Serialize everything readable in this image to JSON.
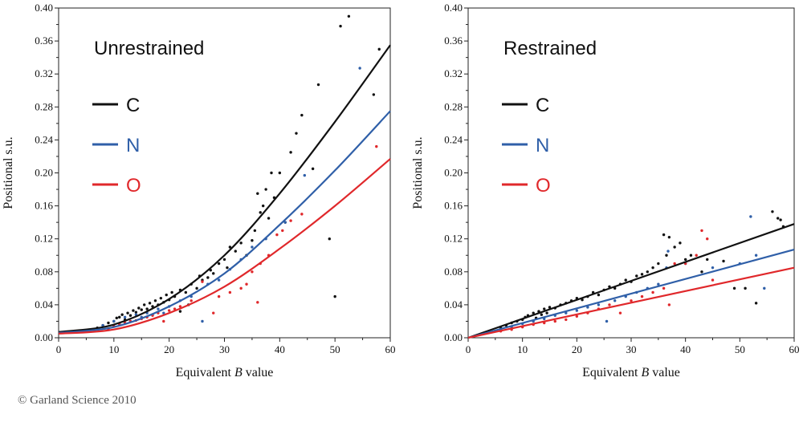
{
  "copyright": "© Garland Science 2010",
  "colors": {
    "C": "#111111",
    "N": "#2f5fa8",
    "O": "#e0282b"
  },
  "chart_data": [
    {
      "type": "scatter",
      "title": "Unrestrained",
      "xlabel_prefix": "Equivalent ",
      "xlabel_var": "B",
      "xlabel_suffix": " value",
      "ylabel": "Positional s.u.",
      "xlim": [
        0,
        60
      ],
      "ylim": [
        0,
        0.4
      ],
      "x_ticks": [
        0,
        10,
        20,
        30,
        40,
        50,
        60
      ],
      "y_ticks": [
        "0.00",
        "0.04",
        "0.08",
        "0.12",
        "0.16",
        "0.20",
        "0.24",
        "0.28",
        "0.32",
        "0.36",
        "0.40"
      ],
      "legend_placement": "top-left",
      "legend": [
        {
          "label": "C",
          "color": "#111111"
        },
        {
          "label": "N",
          "color": "#2f5fa8"
        },
        {
          "label": "O",
          "color": "#e0282b"
        }
      ],
      "fits": [
        {
          "name": "C",
          "color": "#111111",
          "points": [
            [
              0,
              0.007
            ],
            [
              10,
              0.016
            ],
            [
              20,
              0.047
            ],
            [
              30,
              0.1
            ],
            [
              40,
              0.175
            ],
            [
              50,
              0.262
            ],
            [
              60,
              0.355
            ]
          ]
        },
        {
          "name": "N",
          "color": "#2f5fa8",
          "points": [
            [
              0,
              0.006
            ],
            [
              10,
              0.013
            ],
            [
              20,
              0.038
            ],
            [
              30,
              0.078
            ],
            [
              40,
              0.137
            ],
            [
              50,
              0.203
            ],
            [
              60,
              0.275
            ]
          ]
        },
        {
          "name": "O",
          "color": "#e0282b",
          "points": [
            [
              0,
              0.005
            ],
            [
              10,
              0.01
            ],
            [
              20,
              0.03
            ],
            [
              30,
              0.062
            ],
            [
              40,
              0.108
            ],
            [
              50,
              0.16
            ],
            [
              60,
              0.217
            ]
          ]
        }
      ],
      "series": [
        {
          "name": "C",
          "color": "#111111",
          "points": [
            [
              7,
              0.012
            ],
            [
              8,
              0.015
            ],
            [
              9,
              0.018
            ],
            [
              10,
              0.02
            ],
            [
              10.5,
              0.024
            ],
            [
              11,
              0.025
            ],
            [
              11.5,
              0.028
            ],
            [
              12,
              0.022
            ],
            [
              12.5,
              0.03
            ],
            [
              13,
              0.027
            ],
            [
              13.5,
              0.033
            ],
            [
              14,
              0.031
            ],
            [
              14.5,
              0.036
            ],
            [
              15,
              0.034
            ],
            [
              15.5,
              0.04
            ],
            [
              16,
              0.035
            ],
            [
              16.5,
              0.042
            ],
            [
              17,
              0.038
            ],
            [
              17.5,
              0.045
            ],
            [
              18,
              0.04
            ],
            [
              18.5,
              0.048
            ],
            [
              19,
              0.043
            ],
            [
              19.5,
              0.052
            ],
            [
              20,
              0.046
            ],
            [
              20.5,
              0.055
            ],
            [
              21,
              0.05
            ],
            [
              22,
              0.058
            ],
            [
              22,
              0.032
            ],
            [
              23,
              0.055
            ],
            [
              23.5,
              0.04
            ],
            [
              24,
              0.065
            ],
            [
              25,
              0.06
            ],
            [
              25.5,
              0.075
            ],
            [
              26,
              0.07
            ],
            [
              27,
              0.073
            ],
            [
              27.5,
              0.082
            ],
            [
              28,
              0.078
            ],
            [
              29,
              0.09
            ],
            [
              30,
              0.095
            ],
            [
              30.5,
              0.085
            ],
            [
              31,
              0.11
            ],
            [
              32,
              0.105
            ],
            [
              33,
              0.115
            ],
            [
              34,
              0.1
            ],
            [
              35,
              0.118
            ],
            [
              35.5,
              0.13
            ],
            [
              36,
              0.175
            ],
            [
              36.5,
              0.152
            ],
            [
              37,
              0.16
            ],
            [
              37.5,
              0.18
            ],
            [
              38,
              0.145
            ],
            [
              38.5,
              0.2
            ],
            [
              39,
              0.17
            ],
            [
              40,
              0.2
            ],
            [
              41,
              0.14
            ],
            [
              42,
              0.225
            ],
            [
              43,
              0.248
            ],
            [
              44,
              0.27
            ],
            [
              46,
              0.205
            ],
            [
              47,
              0.307
            ],
            [
              49,
              0.12
            ],
            [
              50,
              0.05
            ],
            [
              51,
              0.378
            ],
            [
              52.5,
              0.39
            ],
            [
              57,
              0.295
            ],
            [
              58,
              0.35
            ]
          ]
        },
        {
          "name": "N",
          "color": "#2f5fa8",
          "points": [
            [
              8,
              0.015
            ],
            [
              10,
              0.02
            ],
            [
              11,
              0.017
            ],
            [
              12,
              0.025
            ],
            [
              13,
              0.02
            ],
            [
              14,
              0.028
            ],
            [
              15,
              0.025
            ],
            [
              16,
              0.03
            ],
            [
              17,
              0.028
            ],
            [
              18,
              0.035
            ],
            [
              19,
              0.03
            ],
            [
              20,
              0.038
            ],
            [
              22,
              0.045
            ],
            [
              24,
              0.05
            ],
            [
              26,
              0.02
            ],
            [
              27,
              0.065
            ],
            [
              29,
              0.07
            ],
            [
              31,
              0.083
            ],
            [
              33,
              0.095
            ],
            [
              35,
              0.11
            ],
            [
              37.5,
              0.12
            ],
            [
              41,
              0.14
            ],
            [
              44.5,
              0.197
            ],
            [
              54.5,
              0.327
            ]
          ]
        },
        {
          "name": "O",
          "color": "#e0282b",
          "points": [
            [
              9,
              0.01
            ],
            [
              10,
              0.014
            ],
            [
              11,
              0.016
            ],
            [
              12,
              0.018
            ],
            [
              13,
              0.02
            ],
            [
              14,
              0.021
            ],
            [
              15,
              0.023
            ],
            [
              16,
              0.025
            ],
            [
              17,
              0.027
            ],
            [
              18,
              0.03
            ],
            [
              19,
              0.02
            ],
            [
              20,
              0.033
            ],
            [
              21,
              0.035
            ],
            [
              22,
              0.038
            ],
            [
              24,
              0.045
            ],
            [
              26,
              0.068
            ],
            [
              28,
              0.03
            ],
            [
              29,
              0.05
            ],
            [
              31,
              0.055
            ],
            [
              33,
              0.06
            ],
            [
              34,
              0.065
            ],
            [
              35,
              0.08
            ],
            [
              36,
              0.043
            ],
            [
              36.5,
              0.09
            ],
            [
              38,
              0.1
            ],
            [
              39.5,
              0.125
            ],
            [
              40.5,
              0.13
            ],
            [
              42,
              0.142
            ],
            [
              44,
              0.15
            ],
            [
              57.5,
              0.232
            ]
          ]
        }
      ]
    },
    {
      "type": "scatter",
      "title": "Restrained",
      "xlabel_prefix": "Equivalent ",
      "xlabel_var": "B",
      "xlabel_suffix": " value",
      "ylabel": "Positional s.u.",
      "xlim": [
        0,
        60
      ],
      "ylim": [
        0,
        0.4
      ],
      "x_ticks": [
        0,
        10,
        20,
        30,
        40,
        50,
        60
      ],
      "y_ticks": [
        "0.00",
        "0.04",
        "0.08",
        "0.12",
        "0.16",
        "0.20",
        "0.24",
        "0.28",
        "0.32",
        "0.36",
        "0.40"
      ],
      "legend_placement": "top-left",
      "legend": [
        {
          "label": "C",
          "color": "#111111"
        },
        {
          "label": "N",
          "color": "#2f5fa8"
        },
        {
          "label": "O",
          "color": "#e0282b"
        }
      ],
      "fits": [
        {
          "name": "C",
          "color": "#111111",
          "points": [
            [
              0,
              0.0
            ],
            [
              60,
              0.138
            ]
          ]
        },
        {
          "name": "N",
          "color": "#2f5fa8",
          "points": [
            [
              0,
              0.0
            ],
            [
              60,
              0.107
            ]
          ]
        },
        {
          "name": "O",
          "color": "#e0282b",
          "points": [
            [
              0,
              0.0
            ],
            [
              60,
              0.085
            ]
          ]
        }
      ],
      "series": [
        {
          "name": "C",
          "color": "#111111",
          "points": [
            [
              6,
              0.012
            ],
            [
              7,
              0.015
            ],
            [
              8,
              0.018
            ],
            [
              9,
              0.02
            ],
            [
              10,
              0.022
            ],
            [
              10.5,
              0.025
            ],
            [
              11,
              0.027
            ],
            [
              12,
              0.03
            ],
            [
              12.5,
              0.024
            ],
            [
              13,
              0.032
            ],
            [
              13.5,
              0.028
            ],
            [
              14,
              0.035
            ],
            [
              14.5,
              0.03
            ],
            [
              15,
              0.037
            ],
            [
              16,
              0.036
            ],
            [
              17,
              0.04
            ],
            [
              18,
              0.042
            ],
            [
              19,
              0.045
            ],
            [
              20,
              0.048
            ],
            [
              21,
              0.046
            ],
            [
              22,
              0.05
            ],
            [
              23,
              0.055
            ],
            [
              24,
              0.052
            ],
            [
              25,
              0.058
            ],
            [
              26,
              0.062
            ],
            [
              27,
              0.06
            ],
            [
              28,
              0.065
            ],
            [
              29,
              0.07
            ],
            [
              30,
              0.068
            ],
            [
              31,
              0.075
            ],
            [
              32,
              0.077
            ],
            [
              33,
              0.08
            ],
            [
              34,
              0.085
            ],
            [
              35,
              0.09
            ],
            [
              36,
              0.125
            ],
            [
              36.5,
              0.1
            ],
            [
              37,
              0.122
            ],
            [
              38,
              0.11
            ],
            [
              39,
              0.115
            ],
            [
              40,
              0.095
            ],
            [
              41,
              0.1
            ],
            [
              43,
              0.08
            ],
            [
              44,
              0.095
            ],
            [
              47,
              0.093
            ],
            [
              49,
              0.06
            ],
            [
              51,
              0.06
            ],
            [
              53,
              0.042
            ],
            [
              56,
              0.153
            ],
            [
              57,
              0.145
            ],
            [
              57.5,
              0.143
            ],
            [
              58,
              0.135
            ]
          ]
        },
        {
          "name": "N",
          "color": "#2f5fa8",
          "points": [
            [
              6,
              0.01
            ],
            [
              8,
              0.013
            ],
            [
              10,
              0.017
            ],
            [
              12,
              0.02
            ],
            [
              14,
              0.023
            ],
            [
              16,
              0.027
            ],
            [
              18,
              0.03
            ],
            [
              20,
              0.033
            ],
            [
              22,
              0.037
            ],
            [
              24,
              0.04
            ],
            [
              25.5,
              0.02
            ],
            [
              27,
              0.045
            ],
            [
              29,
              0.05
            ],
            [
              31,
              0.055
            ],
            [
              33,
              0.06
            ],
            [
              35,
              0.065
            ],
            [
              36.5,
              0.085
            ],
            [
              36.8,
              0.105
            ],
            [
              40,
              0.09
            ],
            [
              45,
              0.085
            ],
            [
              50,
              0.09
            ],
            [
              52,
              0.147
            ],
            [
              53,
              0.1
            ],
            [
              54.5,
              0.06
            ]
          ]
        },
        {
          "name": "O",
          "color": "#e0282b",
          "points": [
            [
              6,
              0.008
            ],
            [
              8,
              0.01
            ],
            [
              10,
              0.013
            ],
            [
              12,
              0.016
            ],
            [
              14,
              0.018
            ],
            [
              16,
              0.02
            ],
            [
              18,
              0.022
            ],
            [
              20,
              0.026
            ],
            [
              22,
              0.03
            ],
            [
              24,
              0.035
            ],
            [
              26,
              0.04
            ],
            [
              28,
              0.03
            ],
            [
              30,
              0.045
            ],
            [
              32,
              0.05
            ],
            [
              34,
              0.055
            ],
            [
              36,
              0.06
            ],
            [
              37,
              0.04
            ],
            [
              38,
              0.09
            ],
            [
              40,
              0.09
            ],
            [
              42,
              0.1
            ],
            [
              43,
              0.13
            ],
            [
              44,
              0.12
            ],
            [
              45,
              0.07
            ]
          ]
        }
      ]
    }
  ]
}
